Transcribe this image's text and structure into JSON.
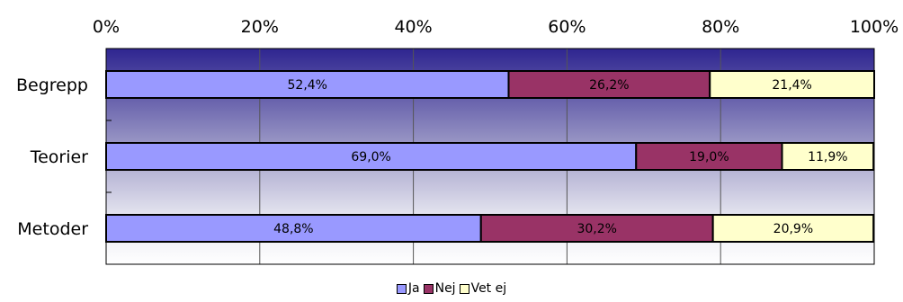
{
  "chart_data": {
    "type": "bar",
    "orientation": "horizontal",
    "stacked": "percent",
    "categories": [
      "Begrepp",
      "Teorier",
      "Metoder"
    ],
    "series": [
      {
        "name": "Ja",
        "values": [
          52.4,
          69.0,
          48.8
        ],
        "labels": [
          "52,4%",
          "69,0%",
          "48,8%"
        ],
        "color": "#9999ff"
      },
      {
        "name": "Nej",
        "values": [
          26.2,
          19.0,
          30.2
        ],
        "labels": [
          "26,2%",
          "19,0%",
          "30,2%"
        ],
        "color": "#993366"
      },
      {
        "name": "Vet ej",
        "values": [
          21.4,
          11.9,
          20.9
        ],
        "labels": [
          "21,4%",
          "11,9%",
          "20,9%"
        ],
        "color": "#ffffcc"
      }
    ],
    "xlim": [
      0,
      100
    ],
    "xticks": [
      "0%",
      "20%",
      "40%",
      "60%",
      "80%",
      "100%"
    ],
    "x_axis_position": "top",
    "grid": true,
    "legend_position": "bottom",
    "plot_background": "gradient from dark blue at top to white at bottom"
  }
}
